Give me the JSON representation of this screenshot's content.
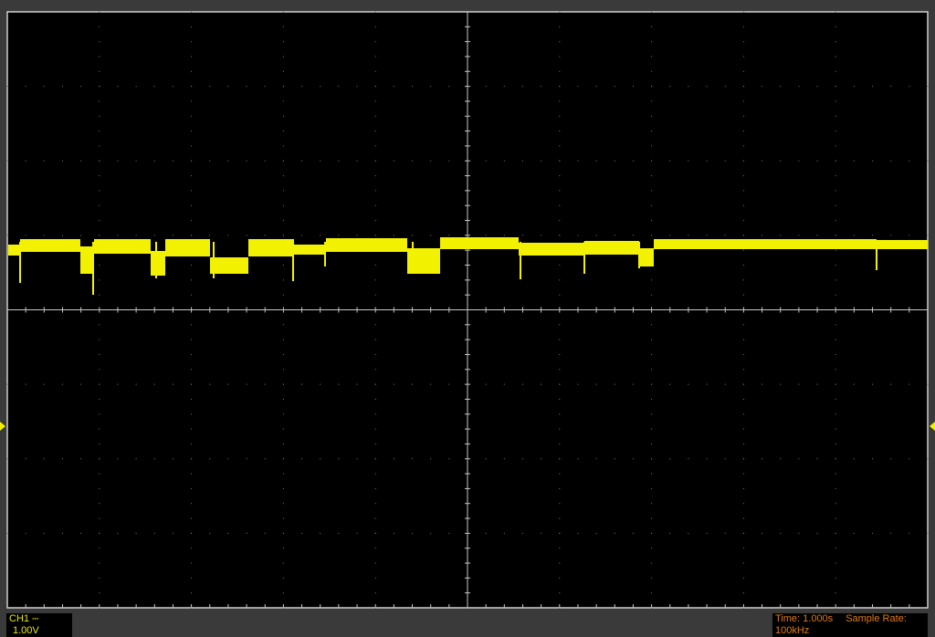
{
  "channel": {
    "name": "CH1",
    "coupling_icon": "dc-coupling-icon",
    "scale": "1.00V",
    "color": "#f2f200"
  },
  "status": {
    "time_label": "Time: 1.000s",
    "sample_rate_label": "Sample Rate: 100kHz",
    "color": "#e07a10"
  },
  "grid": {
    "divisions_x": 10,
    "divisions_y": 8
  }
}
